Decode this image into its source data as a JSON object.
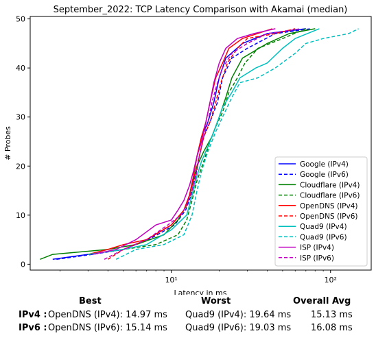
{
  "chart_data": {
    "type": "line",
    "title": "September_2022: TCP Latency Comparison with Akamai (median)",
    "xlabel": "Latency in ms",
    "ylabel": "# Probes",
    "xscale": "log",
    "xlim": [
      1.3,
      180
    ],
    "ylim": [
      -1.2,
      50.5
    ],
    "x_ticks": [
      {
        "value": 10,
        "label": "10¹"
      },
      {
        "value": 100,
        "label": "10²"
      }
    ],
    "y_ticks": [
      0,
      10,
      20,
      30,
      40,
      50
    ],
    "grid": false,
    "legend_position": "bottom-right",
    "series": [
      {
        "name": "Google (IPv4)",
        "color": "#0000ff",
        "dash": "solid",
        "points": [
          [
            1.8,
            1
          ],
          [
            3,
            2
          ],
          [
            5,
            3
          ],
          [
            7,
            5
          ],
          [
            10,
            8
          ],
          [
            12,
            11
          ],
          [
            13,
            14
          ],
          [
            13.8,
            18
          ],
          [
            14.5,
            22
          ],
          [
            15.5,
            26
          ],
          [
            17,
            29
          ],
          [
            18.5,
            33
          ],
          [
            20,
            38
          ],
          [
            22,
            42
          ],
          [
            28,
            45
          ],
          [
            40,
            47
          ],
          [
            70,
            48
          ]
        ]
      },
      {
        "name": "Google (IPv6)",
        "color": "#0000ff",
        "dash": "dashed",
        "points": [
          [
            1.9,
            1
          ],
          [
            3.2,
            2
          ],
          [
            5,
            3
          ],
          [
            7.2,
            5
          ],
          [
            10.5,
            8
          ],
          [
            12.3,
            11
          ],
          [
            13.3,
            14
          ],
          [
            14.2,
            18
          ],
          [
            15,
            22
          ],
          [
            16,
            26
          ],
          [
            17.5,
            29
          ],
          [
            19.5,
            33
          ],
          [
            21,
            38
          ],
          [
            24,
            42
          ],
          [
            30,
            44
          ],
          [
            45,
            47
          ],
          [
            75,
            48
          ]
        ]
      },
      {
        "name": "Cloudflare (IPv4)",
        "color": "#008000",
        "dash": "solid",
        "points": [
          [
            1.5,
            1
          ],
          [
            1.8,
            2
          ],
          [
            4,
            3
          ],
          [
            6,
            4
          ],
          [
            9,
            6
          ],
          [
            11,
            9
          ],
          [
            12.5,
            12
          ],
          [
            13.5,
            16
          ],
          [
            14.5,
            20
          ],
          [
            16,
            23
          ],
          [
            18,
            26
          ],
          [
            20,
            30
          ],
          [
            22,
            34
          ],
          [
            24,
            38
          ],
          [
            28,
            42
          ],
          [
            40,
            45
          ],
          [
            55,
            47
          ],
          [
            80,
            48
          ]
        ]
      },
      {
        "name": "Cloudflare (IPv6)",
        "color": "#008000",
        "dash": "dashed",
        "points": [
          [
            3,
            2
          ],
          [
            5,
            3
          ],
          [
            8,
            4
          ],
          [
            11,
            6
          ],
          [
            12.5,
            9
          ],
          [
            13.5,
            13
          ],
          [
            14.5,
            17
          ],
          [
            16,
            21
          ],
          [
            17.5,
            25
          ],
          [
            19,
            28
          ],
          [
            21,
            31
          ],
          [
            23,
            35
          ],
          [
            26,
            38
          ],
          [
            29,
            41
          ],
          [
            35,
            44
          ],
          [
            50,
            46
          ],
          [
            70,
            48
          ]
        ]
      },
      {
        "name": "OpenDNS (IPv4)",
        "color": "#ff0000",
        "dash": "solid",
        "points": [
          [
            3,
            2
          ],
          [
            4,
            3
          ],
          [
            5,
            4
          ],
          [
            7,
            5
          ],
          [
            10,
            8
          ],
          [
            12,
            11
          ],
          [
            13,
            14
          ],
          [
            13.8,
            18
          ],
          [
            14.5,
            22
          ],
          [
            15.5,
            26
          ],
          [
            16.5,
            29
          ],
          [
            17.5,
            33
          ],
          [
            19,
            38
          ],
          [
            21,
            41
          ],
          [
            23,
            44
          ],
          [
            28,
            46
          ],
          [
            43,
            48
          ]
        ]
      },
      {
        "name": "OpenDNS (IPv6)",
        "color": "#ff0000",
        "dash": "dashed",
        "points": [
          [
            4,
            1
          ],
          [
            5,
            3
          ],
          [
            7,
            5
          ],
          [
            10,
            8
          ],
          [
            12,
            11
          ],
          [
            13,
            14
          ],
          [
            14,
            18
          ],
          [
            15,
            22
          ],
          [
            16,
            26
          ],
          [
            17.5,
            29
          ],
          [
            19,
            33
          ],
          [
            20.5,
            37
          ],
          [
            22.5,
            41
          ],
          [
            26,
            44
          ],
          [
            30,
            46
          ],
          [
            45,
            47
          ],
          [
            60,
            48
          ]
        ]
      },
      {
        "name": "Quad9 (IPv4)",
        "color": "#00bfbf",
        "dash": "solid",
        "points": [
          [
            3,
            2
          ],
          [
            5,
            3
          ],
          [
            7,
            4
          ],
          [
            10,
            7
          ],
          [
            12.5,
            10
          ],
          [
            13.5,
            14
          ],
          [
            14.5,
            18
          ],
          [
            15.5,
            21
          ],
          [
            17,
            24
          ],
          [
            19,
            28
          ],
          [
            21,
            32
          ],
          [
            24,
            35
          ],
          [
            27,
            38
          ],
          [
            34,
            40
          ],
          [
            40,
            41
          ],
          [
            50,
            44
          ],
          [
            60,
            46
          ],
          [
            85,
            48
          ]
        ]
      },
      {
        "name": "Quad9 (IPv6)",
        "color": "#00bfbf",
        "dash": "dashed",
        "points": [
          [
            4.5,
            1
          ],
          [
            6,
            3
          ],
          [
            9,
            4
          ],
          [
            12,
            6
          ],
          [
            13.5,
            10
          ],
          [
            14.5,
            15
          ],
          [
            15.5,
            19
          ],
          [
            17,
            23
          ],
          [
            19,
            27
          ],
          [
            21,
            30
          ],
          [
            24,
            34
          ],
          [
            27,
            37
          ],
          [
            35,
            38
          ],
          [
            45,
            40
          ],
          [
            60,
            43
          ],
          [
            70,
            45
          ],
          [
            90,
            46
          ],
          [
            130,
            47
          ],
          [
            150,
            48
          ]
        ]
      },
      {
        "name": "ISP (IPv4)",
        "color": "#bf00bf",
        "dash": "solid",
        "points": [
          [
            3.2,
            2
          ],
          [
            4.5,
            3
          ],
          [
            6,
            5
          ],
          [
            8,
            8
          ],
          [
            10,
            9
          ],
          [
            11,
            11
          ],
          [
            12,
            13
          ],
          [
            13,
            16
          ],
          [
            13.8,
            19
          ],
          [
            14.5,
            22
          ],
          [
            15.5,
            25
          ],
          [
            16.5,
            29
          ],
          [
            17.5,
            33
          ],
          [
            18.5,
            37
          ],
          [
            20,
            41
          ],
          [
            22,
            44
          ],
          [
            26,
            46
          ],
          [
            33,
            47
          ],
          [
            45,
            48
          ]
        ]
      },
      {
        "name": "ISP (IPv6)",
        "color": "#bf00bf",
        "dash": "dashed",
        "points": [
          [
            3.8,
            1
          ],
          [
            5,
            3
          ],
          [
            7,
            5
          ],
          [
            9.5,
            8
          ],
          [
            11.5,
            10
          ],
          [
            12.5,
            12
          ],
          [
            13.5,
            15
          ],
          [
            14.3,
            18
          ],
          [
            15,
            22
          ],
          [
            16,
            26
          ],
          [
            17,
            29
          ],
          [
            18,
            33
          ],
          [
            19.5,
            37
          ],
          [
            21,
            40
          ],
          [
            24,
            43
          ],
          [
            30,
            45
          ],
          [
            40,
            47
          ],
          [
            65,
            48
          ]
        ]
      }
    ]
  },
  "summary_table": {
    "headers": {
      "best": "Best",
      "worst": "Worst",
      "avg": "Overall Avg"
    },
    "rows": [
      {
        "label": "IPv4 :",
        "best": "OpenDNS (IPv4): 14.97 ms",
        "worst": "Quad9 (IPv4): 19.64 ms",
        "avg": "15.13 ms"
      },
      {
        "label": "IPv6 :",
        "best": "OpenDNS (IPv6): 15.14 ms",
        "worst": "Quad9 (IPv6): 19.03 ms",
        "avg": "16.08 ms"
      }
    ]
  }
}
